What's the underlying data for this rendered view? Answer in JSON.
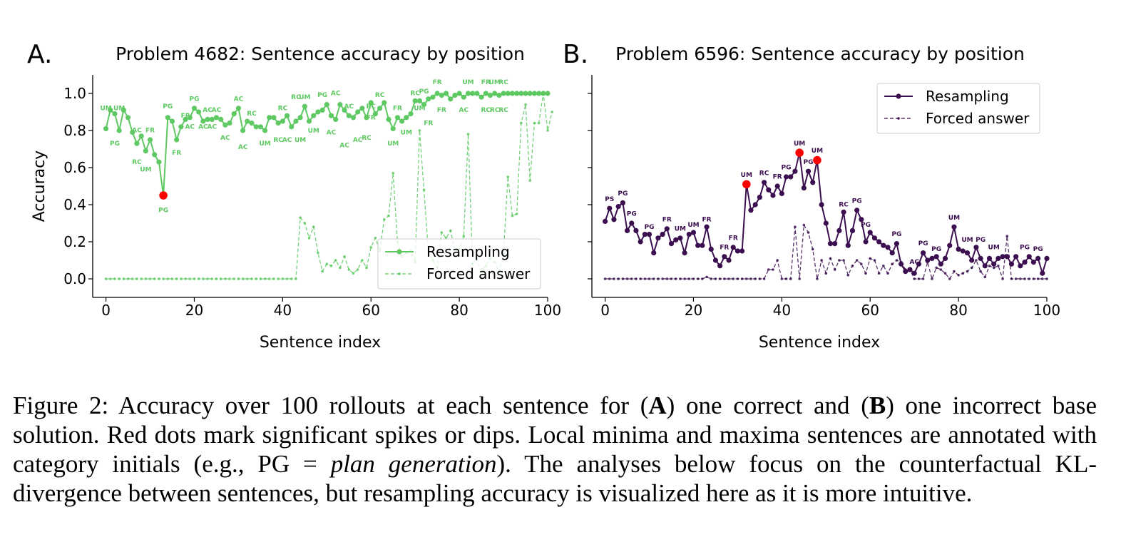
{
  "figure": {
    "caption_lead": "Figure 2: Accuracy over 100 rollouts at each sentence for (",
    "caption_A": "A",
    "caption_mid": ") one correct and (",
    "caption_B": "B",
    "caption_rest1": ") one incorrect base solution. Red dots mark significant spikes or dips. Local minima and maxima sentences are annotated with category initials (e.g., PG = ",
    "caption_italic": "plan generation",
    "caption_rest2": "). The analyses below focus on the counterfactual KL-divergence between sentences, but resampling accuracy is visualized here as it is more intuitive."
  },
  "chart_data": [
    {
      "type": "line",
      "panel_letter": "A.",
      "title": "Problem 4682: Sentence accuracy by position",
      "xlabel": "Sentence index",
      "ylabel": "Accuracy",
      "xlim": [
        -3,
        100
      ],
      "ylim": [
        -0.1,
        1.1
      ],
      "xticks": [
        0,
        20,
        40,
        60,
        80,
        100
      ],
      "yticks": [
        "0.0",
        "0.2",
        "0.4",
        "0.6",
        "0.8",
        "1.0"
      ],
      "color": "#5ec962",
      "legend_position": "lower-right",
      "show_left_ticks": true,
      "series": [
        {
          "name": "Resampling",
          "style": "solid",
          "values": [
            0.81,
            0.91,
            0.89,
            0.8,
            0.91,
            0.87,
            0.79,
            0.73,
            0.77,
            0.69,
            0.75,
            0.67,
            0.63,
            0.45,
            0.87,
            0.85,
            0.75,
            0.82,
            0.86,
            0.87,
            0.92,
            0.9,
            0.85,
            0.86,
            0.86,
            0.87,
            0.86,
            0.83,
            0.84,
            0.89,
            0.92,
            0.8,
            0.85,
            0.84,
            0.82,
            0.82,
            0.8,
            0.87,
            0.87,
            0.84,
            0.85,
            0.88,
            0.82,
            0.85,
            0.87,
            0.93,
            0.85,
            0.88,
            0.9,
            0.91,
            0.94,
            0.88,
            0.86,
            0.94,
            0.91,
            0.88,
            0.87,
            0.9,
            0.92,
            0.87,
            0.95,
            0.89,
            0.92,
            0.95,
            0.86,
            0.81,
            0.87,
            0.85,
            0.87,
            0.89,
            0.96,
            0.96,
            0.94,
            0.97,
            0.98,
            1.0,
            0.99,
            1.0,
            0.97,
            0.99,
            1.0,
            0.98,
            1.0,
            1.0,
            1.0,
            0.98,
            1.0,
            0.99,
            1.0,
            0.99,
            1.0,
            1.0,
            1.0,
            1.0,
            1.0,
            1.0,
            1.0,
            1.0,
            1.0,
            1.0,
            1.0
          ]
        },
        {
          "name": "Forced answer",
          "style": "dashed",
          "values": [
            0,
            0,
            0,
            0,
            0,
            0,
            0,
            0,
            0,
            0,
            0,
            0,
            0,
            0,
            0,
            0,
            0,
            0,
            0,
            0,
            0,
            0,
            0,
            0,
            0,
            0,
            0,
            0,
            0,
            0,
            0,
            0,
            0,
            0,
            0,
            0,
            0,
            0,
            0,
            0,
            0,
            0,
            0,
            0,
            0.33,
            0.3,
            0.22,
            0.28,
            0.14,
            0.04,
            0.08,
            0.07,
            0.1,
            0.06,
            0.12,
            0.05,
            0.03,
            0.05,
            0.1,
            0.06,
            0.17,
            0.22,
            0.15,
            0.32,
            0.34,
            0.57,
            0.2,
            0.12,
            0.14,
            0.15,
            0.09,
            0.8,
            0.48,
            0.14,
            0.1,
            0.06,
            0.25,
            0.22,
            0.26,
            0.16,
            0.16,
            0.23,
            0.78,
            0.08,
            0.1,
            0.04,
            0.07,
            0.11,
            0.09,
            0.04,
            0.14,
            0.55,
            0.34,
            0.35,
            0.84,
            0.94,
            0.53,
            0.84,
            0.84,
            1.0,
            0.8,
            0.9
          ]
        }
      ],
      "highlights": [
        [
          13,
          0.45
        ]
      ],
      "annotations": [
        [
          0,
          0.91,
          "UM",
          -1
        ],
        [
          3,
          0.91,
          "UM",
          -1
        ],
        [
          2,
          0.75,
          "PG",
          1
        ],
        [
          7,
          0.79,
          "AC",
          -1
        ],
        [
          10,
          0.79,
          "FR",
          -1
        ],
        [
          7,
          0.65,
          "RC",
          1
        ],
        [
          9,
          0.61,
          "UM",
          1
        ],
        [
          14,
          0.92,
          "PG",
          -1
        ],
        [
          13,
          0.39,
          "PG",
          1
        ],
        [
          18,
          0.87,
          "FR",
          -1
        ],
        [
          16,
          0.7,
          "FR",
          1
        ],
        [
          20,
          0.96,
          "PG",
          -1
        ],
        [
          19,
          0.81,
          "AC",
          -1
        ],
        [
          22,
          0.81,
          "AC",
          -1
        ],
        [
          24,
          0.81,
          "AC",
          -1
        ],
        [
          23,
          0.9,
          "AC",
          -1
        ],
        [
          25,
          0.9,
          "AC",
          -1
        ],
        [
          27,
          0.78,
          "AC",
          1
        ],
        [
          30,
          0.96,
          "AC",
          -1
        ],
        [
          31,
          0.73,
          "AC",
          1
        ],
        [
          33,
          0.88,
          "RC",
          -1
        ],
        [
          36,
          0.75,
          "UM",
          1
        ],
        [
          39,
          0.77,
          "RC",
          1
        ],
        [
          41,
          0.77,
          "AC",
          1
        ],
        [
          44,
          0.77,
          "UM",
          1
        ],
        [
          40,
          0.91,
          "RC",
          -1
        ],
        [
          43,
          0.97,
          "RC",
          -1
        ],
        [
          45,
          0.97,
          "UM",
          -1
        ],
        [
          49,
          0.98,
          "PG",
          -1
        ],
        [
          52,
          0.99,
          "AC",
          -1
        ],
        [
          47,
          0.82,
          "UM",
          1
        ],
        [
          51,
          0.81,
          "AC",
          1
        ],
        [
          55,
          0.92,
          "AC",
          -1
        ],
        [
          54,
          0.74,
          "AC",
          1
        ],
        [
          57,
          0.77,
          "AC",
          1
        ],
        [
          59,
          0.78,
          "RC",
          1
        ],
        [
          60,
          0.92,
          "RC",
          -1
        ],
        [
          62,
          0.98,
          "RC",
          -1
        ],
        [
          60,
          0.86,
          "FR",
          -1
        ],
        [
          66,
          0.91,
          "FR",
          -1
        ],
        [
          65,
          0.75,
          "UM",
          1
        ],
        [
          68,
          0.81,
          "UM",
          1
        ],
        [
          70,
          0.99,
          "RC",
          -1
        ],
        [
          72,
          1.0,
          "PG",
          -1
        ],
        [
          71,
          0.91,
          "UM",
          -1
        ],
        [
          73,
          0.86,
          "FR",
          1
        ],
        [
          75,
          1.05,
          "FR",
          -1
        ],
        [
          76,
          0.93,
          "FR",
          1
        ],
        [
          81,
          0.93,
          "AC",
          1
        ],
        [
          82,
          1.05,
          "UM",
          -1
        ],
        [
          86,
          1.05,
          "FR",
          -1
        ],
        [
          88,
          1.05,
          "UM",
          -1
        ],
        [
          90,
          1.05,
          "RC",
          -1
        ],
        [
          86,
          0.93,
          "RC",
          1
        ],
        [
          88,
          0.93,
          "RC",
          1
        ],
        [
          90,
          0.93,
          "RC",
          1
        ]
      ]
    },
    {
      "type": "line",
      "panel_letter": "B.",
      "title": "Problem 6596: Sentence accuracy by position",
      "xlabel": "Sentence index",
      "ylabel": "",
      "xlim": [
        -3,
        100
      ],
      "ylim": [
        -0.1,
        1.1
      ],
      "xticks": [
        0,
        20,
        40,
        60,
        80,
        100
      ],
      "yticks": [],
      "color": "#3b0f4f",
      "legend_position": "upper-right",
      "show_left_ticks": false,
      "series": [
        {
          "name": "Resampling",
          "style": "solid",
          "values": [
            0.31,
            0.38,
            0.32,
            0.39,
            0.41,
            0.26,
            0.3,
            0.26,
            0.2,
            0.24,
            0.24,
            0.14,
            0.22,
            0.24,
            0.27,
            0.19,
            0.21,
            0.22,
            0.14,
            0.24,
            0.25,
            0.18,
            0.18,
            0.28,
            0.16,
            0.1,
            0.07,
            0.12,
            0.1,
            0.17,
            0.15,
            0.15,
            0.51,
            0.37,
            0.4,
            0.44,
            0.52,
            0.48,
            0.45,
            0.5,
            0.46,
            0.55,
            0.55,
            0.58,
            0.68,
            0.49,
            0.58,
            0.52,
            0.64,
            0.4,
            0.3,
            0.19,
            0.19,
            0.26,
            0.36,
            0.18,
            0.26,
            0.37,
            0.32,
            0.2,
            0.25,
            0.22,
            0.2,
            0.18,
            0.17,
            0.14,
            0.19,
            0.08,
            0.04,
            0.05,
            0.03,
            0.08,
            0.14,
            0.1,
            0.11,
            0.12,
            0.08,
            0.11,
            0.18,
            0.28,
            0.16,
            0.15,
            0.14,
            0.1,
            0.17,
            0.11,
            0.07,
            0.11,
            0.08,
            0.11,
            0.12,
            0.12,
            0.08,
            0.12,
            0.07,
            0.09,
            0.12,
            0.09,
            0.11,
            0.03,
            0.11
          ]
        },
        {
          "name": "Forced answer",
          "style": "dashed",
          "values": [
            0,
            0,
            0,
            0,
            0,
            0,
            0,
            0,
            0,
            0,
            0,
            0,
            0,
            0,
            0,
            0,
            0,
            0,
            0,
            0,
            0,
            0,
            0,
            0.01,
            0,
            0,
            0,
            0,
            0,
            0,
            0,
            0,
            0,
            0,
            0,
            0,
            0,
            0.05,
            0.05,
            0.1,
            0,
            0,
            0,
            0.28,
            0,
            0.29,
            0.25,
            0.16,
            0,
            0.1,
            0.03,
            0.11,
            0.05,
            0.1,
            0.1,
            0.02,
            0.07,
            0.1,
            0.08,
            0.03,
            0.11,
            0.1,
            0.03,
            0.07,
            0.03,
            0.08,
            0.1,
            0.09,
            0.05,
            0.05,
            0,
            0,
            0,
            0.09,
            0,
            0.06,
            0.05,
            0.03,
            0,
            0.04,
            0.02,
            0.03,
            0.04,
            0.06,
            0.1,
            0.04,
            0.01,
            0.07,
            0.06,
            0.07,
            0,
            0.23,
            0,
            0,
            0,
            0,
            0,
            0,
            0,
            0,
            0
          ]
        }
      ],
      "highlights": [
        [
          32,
          0.51
        ],
        [
          44,
          0.68
        ],
        [
          48,
          0.64
        ]
      ],
      "annotations": [
        [
          1,
          0.42,
          "PS",
          -1
        ],
        [
          4,
          0.45,
          "PG",
          -1
        ],
        [
          6,
          0.34,
          "PG",
          -1
        ],
        [
          10,
          0.27,
          "PG",
          -1
        ],
        [
          14,
          0.31,
          "FR",
          -1
        ],
        [
          17,
          0.26,
          "UM",
          -1
        ],
        [
          20,
          0.28,
          "UM",
          -1
        ],
        [
          23,
          0.31,
          "FR",
          -1
        ],
        [
          29,
          0.21,
          "FR",
          -1
        ],
        [
          27,
          0.16,
          "FR",
          -1
        ],
        [
          32,
          0.55,
          "UM",
          -1
        ],
        [
          36,
          0.56,
          "RC",
          -1
        ],
        [
          39,
          0.54,
          "FR",
          -1
        ],
        [
          41,
          0.59,
          "PG",
          -1
        ],
        [
          44,
          0.72,
          "UM",
          -1
        ],
        [
          46,
          0.62,
          "PG",
          -1
        ],
        [
          48,
          0.68,
          "UM",
          -1
        ],
        [
          54,
          0.39,
          "RC",
          -1
        ],
        [
          57,
          0.41,
          "PG",
          -1
        ],
        [
          59,
          0.28,
          "PG",
          -1
        ],
        [
          66,
          0.23,
          "PG",
          -1
        ],
        [
          70,
          0.08,
          "AC",
          -1
        ],
        [
          72,
          0.18,
          "PG",
          -1
        ],
        [
          75,
          0.15,
          "PG",
          -1
        ],
        [
          79,
          0.32,
          "UM",
          -1
        ],
        [
          82,
          0.2,
          "UM",
          -1
        ],
        [
          85,
          0.2,
          "PG",
          -1
        ],
        [
          88,
          0.16,
          "UM",
          -1
        ],
        [
          95,
          0.16,
          "PG",
          -1
        ],
        [
          98,
          0.15,
          "PG",
          -1
        ]
      ]
    }
  ]
}
